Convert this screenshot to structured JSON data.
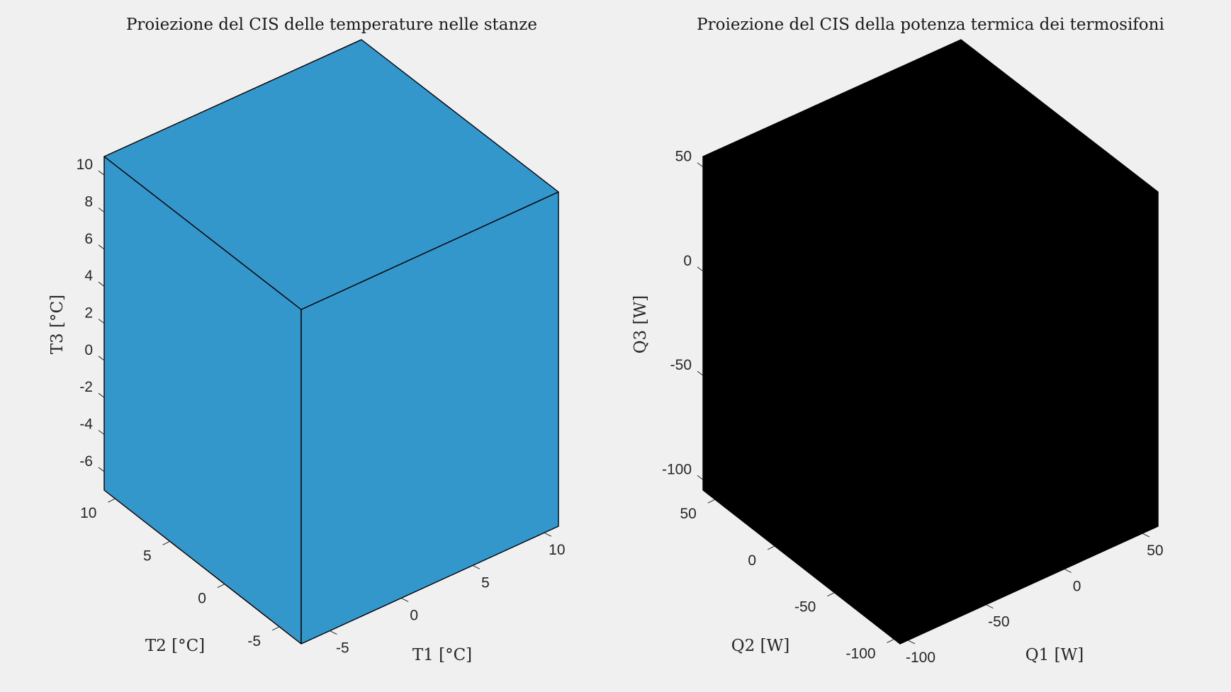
{
  "chart_data": [
    {
      "type": "3d-box",
      "title": "Proiezione del CIS delle temperature nelle stanze",
      "xlabel": "T1 [°C]",
      "ylabel": "T2 [°C]",
      "zlabel": "T3 [°C]",
      "xlim": [
        -7,
        11
      ],
      "ylim": [
        -7,
        11
      ],
      "zlim": [
        -7,
        11
      ],
      "box": {
        "x": [
          -7,
          11
        ],
        "y": [
          -7,
          11
        ],
        "z": [
          -7,
          11
        ]
      },
      "xticks": [
        "-5",
        "0",
        "5",
        "10"
      ],
      "yticks": [
        "-5",
        "0",
        "5",
        "10"
      ],
      "zticks": [
        "-6",
        "-4",
        "-2",
        "0",
        "2",
        "4",
        "6",
        "8",
        "10"
      ],
      "face_color": "#3497cc",
      "grid": false
    },
    {
      "type": "3d-box",
      "title": "Proiezione del CIS della potenza termica dei termosifoni",
      "xlabel": "Q1 [W]",
      "ylabel": "Q2 [W]",
      "zlabel": "Q3 [W]",
      "xlim": [
        -105,
        60
      ],
      "ylim": [
        -105,
        60
      ],
      "zlim": [
        -105,
        55
      ],
      "box": {
        "x": [
          -105,
          60
        ],
        "y": [
          -105,
          60
        ],
        "z": [
          -105,
          55
        ]
      },
      "xticks": [
        "-100",
        "-50",
        "0",
        "50"
      ],
      "yticks": [
        "-100",
        "-50",
        "0",
        "50"
      ],
      "zticks": [
        "-100",
        "-50",
        "0",
        "50"
      ],
      "face_color": "#3497cc",
      "grid": false
    }
  ]
}
